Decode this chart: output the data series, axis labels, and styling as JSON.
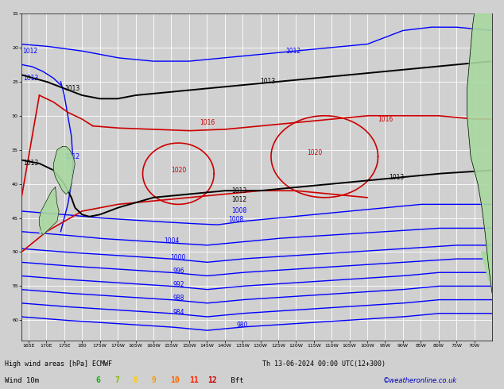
{
  "title_line1": "High wind areas [hPa] ECMWF",
  "title_line2": "Th 13-06-2024 00:00 UTC(12+300)",
  "wind_label": "Wind 10m",
  "beaufort_values": [
    "6",
    "7",
    "8",
    "9",
    "10",
    "11",
    "12"
  ],
  "beaufort_colors": [
    "#00bb00",
    "#88bb00",
    "#ffcc00",
    "#ff9900",
    "#ff6600",
    "#ff2200",
    "#cc0000"
  ],
  "beaufort_label": "Bft",
  "copyright": "©weatheronline.co.uk",
  "bg_color": "#d0d0d0",
  "map_bg": "#d0d0d0",
  "grid_color": "#ffffff",
  "land_color": "#a8d8a0",
  "coast_color": "#000000",
  "blue": "#0000ff",
  "red": "#cc0000",
  "black": "#000000",
  "xlim": [
    163,
    295
  ],
  "ylim": [
    -63,
    -15
  ]
}
